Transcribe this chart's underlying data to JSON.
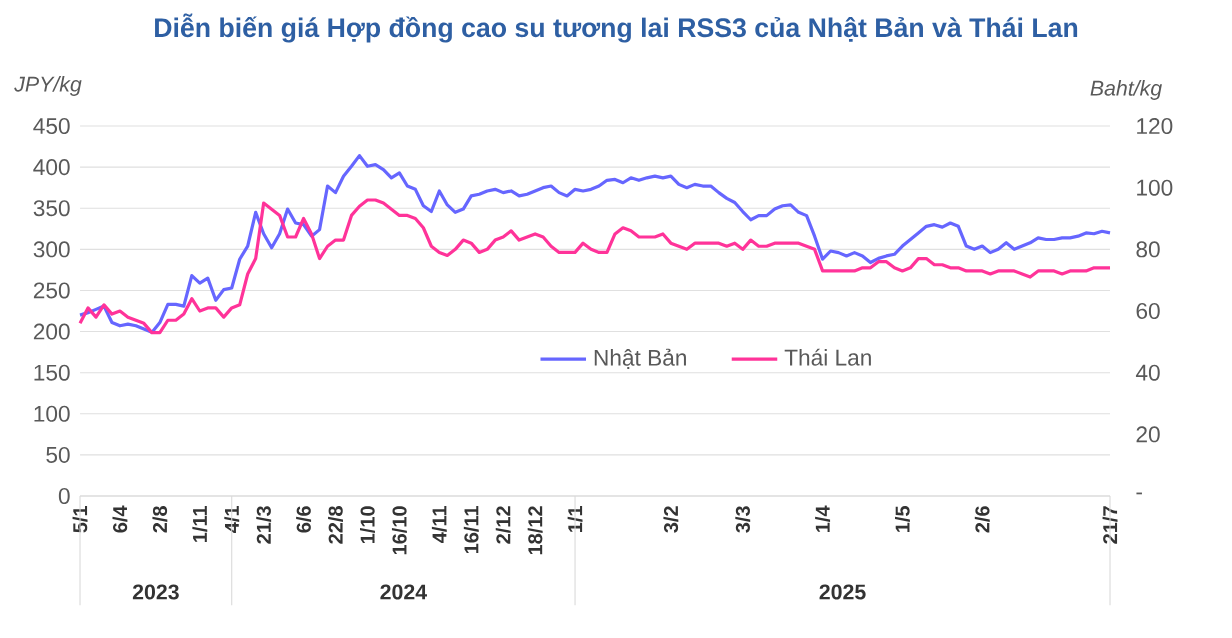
{
  "chart_data": {
    "type": "line",
    "title": "Diễn biến giá Hợp đồng cao su tương lai RSS3 của Nhật Bản và Thái Lan",
    "ylabel": "JPY/kg",
    "y2label": "Baht/kg",
    "categories": [
      "5/1",
      null,
      null,
      null,
      null,
      "6/4",
      null,
      null,
      null,
      null,
      "2/8",
      null,
      null,
      null,
      null,
      "1/11",
      null,
      null,
      null,
      "4/1",
      null,
      null,
      null,
      "21/3",
      null,
      null,
      null,
      null,
      "6/6",
      null,
      null,
      null,
      "22/8",
      null,
      null,
      null,
      "1/10",
      null,
      null,
      null,
      "16/10",
      null,
      null,
      null,
      null,
      "4/11",
      null,
      null,
      null,
      "16/11",
      null,
      null,
      null,
      "2/12",
      null,
      null,
      null,
      "18/12",
      null,
      null,
      null,
      null,
      "1/1",
      null,
      null,
      null,
      null,
      null,
      null,
      null,
      null,
      null,
      null,
      null,
      "3/2",
      null,
      null,
      null,
      null,
      null,
      null,
      null,
      null,
      "3/3",
      null,
      null,
      null,
      null,
      null,
      null,
      null,
      null,
      null,
      "1/4",
      null,
      null,
      null,
      null,
      null,
      null,
      null,
      null,
      null,
      "1/5",
      null,
      null,
      null,
      null,
      null,
      null,
      null,
      null,
      null,
      "2/6",
      null,
      null,
      null,
      null,
      null,
      null,
      null,
      null,
      null,
      null,
      null,
      null,
      null,
      null,
      null,
      "21/7"
    ],
    "series": [
      {
        "name": "Nhật Bản",
        "color": "#6666ff",
        "values": [
          220,
          223,
          227,
          231,
          211,
          207,
          209,
          207,
          203,
          199,
          211,
          233,
          233,
          231,
          268,
          259,
          265,
          238,
          251,
          253,
          288,
          304,
          345,
          319,
          302,
          319,
          349,
          332,
          330,
          316,
          324,
          377,
          369,
          389,
          401,
          414,
          401,
          403,
          397,
          387,
          393,
          377,
          373,
          353,
          346,
          371,
          354,
          345,
          349,
          365,
          367,
          371,
          373,
          369,
          371,
          365,
          367,
          371,
          375,
          377,
          369,
          365,
          373,
          371,
          373,
          377,
          384,
          385,
          381,
          387,
          384,
          387,
          389,
          387,
          389,
          379,
          375,
          379,
          377,
          377,
          369,
          362,
          357,
          346,
          336,
          341,
          341,
          349,
          353,
          354,
          345,
          341,
          316,
          288,
          298,
          296,
          292,
          296,
          292,
          284,
          289,
          292,
          294,
          304,
          312,
          320,
          328,
          330,
          327,
          332,
          328,
          304,
          300,
          304,
          296,
          300,
          308,
          300,
          304,
          308,
          314,
          312,
          312,
          314,
          314,
          316,
          320,
          319,
          322,
          320
        ]
      },
      {
        "name": "Thái Lan",
        "color": "#ff3399",
        "axis": "y2",
        "values": [
          56,
          61,
          58,
          62,
          59,
          60,
          58,
          57,
          56,
          53,
          53,
          57,
          57,
          59,
          64,
          60,
          61,
          61,
          58,
          61,
          62,
          72,
          77,
          95,
          93,
          91,
          84,
          84,
          90,
          85,
          77,
          81,
          83,
          83,
          91,
          94,
          96,
          96,
          95,
          93,
          91,
          91,
          90,
          87,
          81,
          79,
          78,
          80,
          83,
          82,
          79,
          80,
          83,
          84,
          86,
          83,
          84,
          85,
          84,
          81,
          79,
          79,
          79,
          82,
          80,
          79,
          79,
          85,
          87,
          86,
          84,
          84,
          84,
          85,
          82,
          81,
          80,
          82,
          82,
          82,
          82,
          81,
          82,
          80,
          83,
          81,
          81,
          82,
          82,
          82,
          82,
          81,
          80,
          73,
          73,
          73,
          73,
          73,
          74,
          74,
          76,
          76,
          74,
          73,
          74,
          77,
          77,
          75,
          75,
          74,
          74,
          73,
          73,
          73,
          72,
          73,
          73,
          73,
          72,
          71,
          73,
          73,
          73,
          72,
          73,
          73,
          73,
          74,
          74,
          74
        ]
      }
    ],
    "ylim": [
      0,
      450
    ],
    "yticks": [
      0,
      50,
      100,
      150,
      200,
      250,
      300,
      350,
      400,
      450
    ],
    "y2lim": [
      0,
      120
    ],
    "y2ticks": [
      {
        "value": 0,
        "label": "-"
      },
      20,
      40,
      60,
      80,
      100,
      120
    ],
    "annotations": [
      "2023",
      "2024",
      "2025"
    ],
    "grid": "y",
    "legend": "center"
  }
}
